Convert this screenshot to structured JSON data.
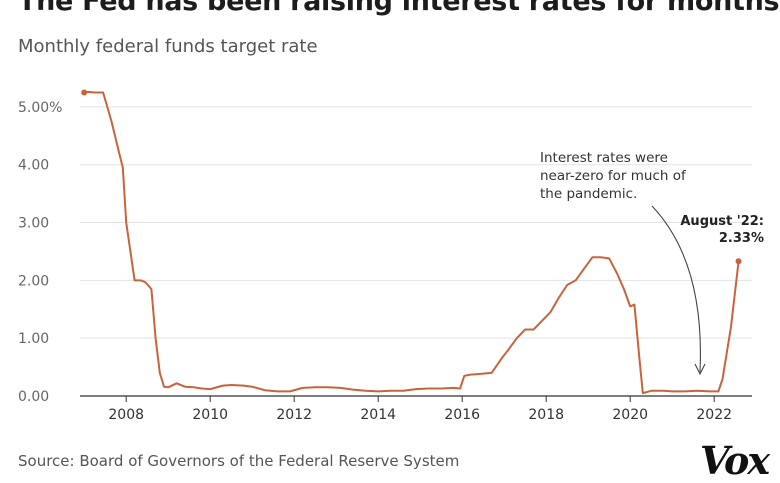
{
  "header": {
    "title": "The Fed has been raising interest rates for months",
    "subtitle": "Monthly federal funds target rate"
  },
  "footer": {
    "source": "Source: Board of Governors of the Federal Reserve System",
    "logo_text": "Vox"
  },
  "colors": {
    "line": "#c8643c",
    "grid": "#e3e3e3",
    "axis": "#333333"
  },
  "chart_data": {
    "type": "line",
    "title": "The Fed has been raising interest rates for months",
    "subtitle": "Monthly federal funds target rate",
    "xlabel": "",
    "ylabel": "",
    "xlim": [
      2006.9,
      2022.9
    ],
    "ylim": [
      0,
      5.5
    ],
    "yticks": [
      0,
      1,
      2,
      3,
      4,
      5
    ],
    "ytick_labels": [
      "0.00",
      "1.00",
      "2.00",
      "3.00",
      "4.00",
      "5.00%"
    ],
    "xticks": [
      2008,
      2010,
      2012,
      2014,
      2016,
      2018,
      2020,
      2022
    ],
    "xtick_labels": [
      "2008",
      "2010",
      "2012",
      "2014",
      "2016",
      "2018",
      "2020",
      "2022"
    ],
    "grid": "horizontal",
    "series": [
      {
        "x": [
          2007.0,
          2007.1,
          2007.25,
          2007.45,
          2007.55,
          2007.65,
          2007.8,
          2007.92,
          2008.0,
          2008.1,
          2008.2,
          2008.35,
          2008.45,
          2008.6,
          2008.7,
          2008.8,
          2008.9,
          2009.0,
          2009.2,
          2009.4,
          2009.6,
          2009.8,
          2010.0,
          2010.3,
          2010.5,
          2010.8,
          2011.0,
          2011.3,
          2011.6,
          2011.9,
          2012.2,
          2012.5,
          2012.8,
          2013.1,
          2013.4,
          2013.7,
          2014.0,
          2014.3,
          2014.6,
          2014.9,
          2015.2,
          2015.5,
          2015.8,
          2015.95,
          2016.05,
          2016.2,
          2016.4,
          2016.7,
          2016.95,
          2017.1,
          2017.3,
          2017.5,
          2017.7,
          2017.9,
          2018.1,
          2018.3,
          2018.5,
          2018.7,
          2018.9,
          2019.1,
          2019.3,
          2019.5,
          2019.7,
          2019.85,
          2020.0,
          2020.1,
          2020.22,
          2020.3,
          2020.5,
          2020.8,
          2021.0,
          2021.3,
          2021.6,
          2021.9,
          2022.1,
          2022.2,
          2022.4,
          2022.58
        ],
        "y": [
          5.25,
          5.26,
          5.25,
          5.25,
          5.0,
          4.75,
          4.3,
          3.95,
          3.0,
          2.5,
          2.0,
          2.0,
          1.97,
          1.85,
          1.0,
          0.4,
          0.16,
          0.15,
          0.22,
          0.16,
          0.15,
          0.13,
          0.12,
          0.18,
          0.19,
          0.18,
          0.16,
          0.1,
          0.08,
          0.08,
          0.14,
          0.15,
          0.15,
          0.14,
          0.11,
          0.09,
          0.08,
          0.09,
          0.09,
          0.12,
          0.13,
          0.13,
          0.14,
          0.13,
          0.35,
          0.37,
          0.38,
          0.4,
          0.66,
          0.8,
          1.0,
          1.15,
          1.15,
          1.3,
          1.45,
          1.7,
          1.92,
          2.0,
          2.2,
          2.4,
          2.4,
          2.38,
          2.1,
          1.85,
          1.55,
          1.58,
          0.65,
          0.05,
          0.09,
          0.09,
          0.08,
          0.08,
          0.09,
          0.08,
          0.08,
          0.3,
          1.2,
          2.33
        ]
      }
    ],
    "annotations": [
      {
        "lines": [
          "Interest rates were",
          "near-zero for much of",
          "the pandemic."
        ]
      },
      {
        "lines": [
          "August '22:",
          "2.33%"
        ]
      }
    ]
  }
}
